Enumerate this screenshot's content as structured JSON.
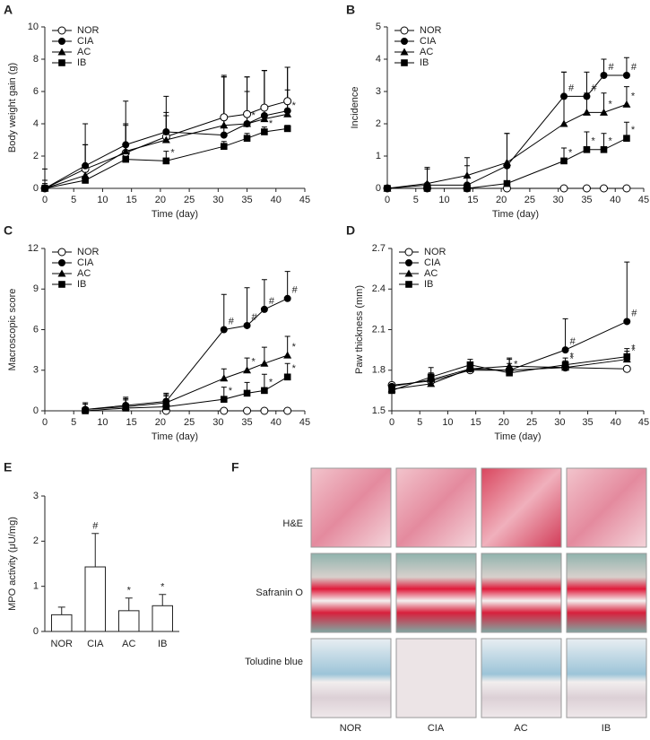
{
  "chart_data": [
    {
      "type": "line",
      "panel_label": "A",
      "xlabel": "Time (day)",
      "ylabel": "Body weight gain (g)",
      "x": [
        0,
        7,
        14,
        21,
        31,
        35,
        38,
        42
      ],
      "xlim": [
        0,
        45
      ],
      "xticks": [
        0,
        5,
        10,
        15,
        20,
        25,
        30,
        35,
        40,
        45
      ],
      "ylim": [
        0,
        10
      ],
      "yticks": [
        0,
        2,
        4,
        6,
        8,
        10
      ],
      "legend": "upper left",
      "series": [
        {
          "name": "NOR",
          "marker": "circle-open",
          "color": "#000000",
          "values": [
            0,
            1.2,
            2.2,
            3.2,
            4.4,
            4.6,
            5.0,
            5.4
          ],
          "errors": [
            1.2,
            1.5,
            1.7,
            1.5,
            2.6,
            2.3,
            2.3,
            2.1
          ],
          "point_labels": [
            null,
            null,
            null,
            null,
            null,
            null,
            null,
            null
          ]
        },
        {
          "name": "CIA",
          "marker": "circle-filled",
          "color": "#000000",
          "values": [
            0,
            1.4,
            2.7,
            3.5,
            3.3,
            4.0,
            4.5,
            4.8
          ],
          "errors": [
            0.2,
            2.6,
            2.7,
            2.2,
            3.6,
            2.9,
            2.8,
            2.7
          ],
          "point_labels": [
            null,
            null,
            null,
            null,
            null,
            null,
            null,
            null
          ]
        },
        {
          "name": "AC",
          "marker": "triangle",
          "color": "#000000",
          "values": [
            0,
            0.8,
            2.3,
            3.0,
            3.9,
            4.0,
            4.3,
            4.6
          ],
          "errors": [
            0.5,
            1.9,
            1.7,
            1.5,
            3.0,
            2.0,
            3.0,
            1.5
          ],
          "point_labels": [
            null,
            null,
            null,
            null,
            null,
            "*",
            null,
            "*"
          ]
        },
        {
          "name": "IB",
          "marker": "square",
          "color": "#000000",
          "values": [
            0,
            0.5,
            1.8,
            1.7,
            2.6,
            3.1,
            3.5,
            3.7
          ],
          "errors": [
            0.3,
            0.6,
            0.2,
            0.6,
            0.3,
            0.3,
            0.3,
            0.2
          ],
          "point_labels": [
            null,
            null,
            null,
            "*",
            null,
            null,
            "*",
            null
          ]
        }
      ]
    },
    {
      "type": "line",
      "panel_label": "B",
      "xlabel": "Time (day)",
      "ylabel": "Incidence",
      "x": [
        0,
        7,
        14,
        21,
        31,
        35,
        38,
        42
      ],
      "xlim": [
        0,
        45
      ],
      "xticks": [
        0,
        5,
        10,
        15,
        20,
        25,
        30,
        35,
        40,
        45
      ],
      "ylim": [
        0,
        5
      ],
      "yticks": [
        0,
        1,
        2,
        3,
        4,
        5
      ],
      "legend": "upper left",
      "series": [
        {
          "name": "NOR",
          "marker": "circle-open",
          "color": "#000000",
          "values": [
            0,
            0,
            0,
            0,
            0,
            0,
            0,
            0
          ],
          "errors": [
            0,
            0,
            0,
            0,
            0,
            0,
            0,
            0
          ],
          "point_labels": [
            null,
            null,
            null,
            null,
            null,
            null,
            null,
            null
          ]
        },
        {
          "name": "CIA",
          "marker": "circle-filled",
          "color": "#000000",
          "values": [
            0,
            0.1,
            0.1,
            0.7,
            2.85,
            2.85,
            3.5,
            3.5
          ],
          "errors": [
            0,
            0.5,
            0.6,
            1.0,
            0.75,
            0.75,
            0.5,
            0.55
          ],
          "point_labels": [
            null,
            null,
            null,
            null,
            "#",
            "#",
            "#",
            "#"
          ]
        },
        {
          "name": "AC",
          "marker": "triangle",
          "color": "#000000",
          "values": [
            0,
            0.15,
            0.4,
            0.8,
            2.0,
            2.35,
            2.35,
            2.6
          ],
          "errors": [
            0,
            0.5,
            0.55,
            0.9,
            1.6,
            0.6,
            0.6,
            0.55
          ],
          "point_labels": [
            null,
            null,
            null,
            null,
            null,
            null,
            "*",
            "*"
          ]
        },
        {
          "name": "IB",
          "marker": "square",
          "color": "#000000",
          "values": [
            0,
            0,
            0,
            0.15,
            0.85,
            1.2,
            1.2,
            1.55
          ],
          "errors": [
            0,
            0,
            0,
            0.5,
            0.4,
            0.55,
            0.5,
            0.5
          ],
          "point_labels": [
            null,
            null,
            null,
            null,
            "*",
            "*",
            "*",
            "*"
          ]
        }
      ]
    },
    {
      "type": "line",
      "panel_label": "C",
      "xlabel": "Time (day)",
      "ylabel": "Macroscopic score",
      "x": [
        7,
        14,
        21,
        31,
        35,
        38,
        42
      ],
      "xlim": [
        0,
        45
      ],
      "xticks": [
        0,
        5,
        10,
        15,
        20,
        25,
        30,
        35,
        40,
        45
      ],
      "ylim": [
        0,
        12
      ],
      "yticks": [
        0,
        3,
        6,
        9,
        12
      ],
      "legend": "upper left",
      "series": [
        {
          "name": "NOR",
          "marker": "circle-open",
          "color": "#000000",
          "values": [
            null,
            null,
            0,
            0,
            0,
            0,
            0
          ],
          "errors": [
            null,
            null,
            0,
            0,
            0,
            0,
            0
          ],
          "point_labels": [
            null,
            null,
            null,
            null,
            null,
            null,
            null
          ]
        },
        {
          "name": "CIA",
          "marker": "circle-filled",
          "color": "#000000",
          "values": [
            0.1,
            0.4,
            0.7,
            6.0,
            6.3,
            7.5,
            8.3
          ],
          "errors": [
            0.5,
            0.6,
            0.6,
            2.6,
            2.8,
            2.2,
            2.0
          ],
          "point_labels": [
            null,
            null,
            null,
            "#",
            "#",
            "#",
            "#"
          ]
        },
        {
          "name": "AC",
          "marker": "triangle",
          "color": "#000000",
          "values": [
            0.1,
            0.3,
            0.6,
            2.4,
            3.0,
            3.5,
            4.1
          ],
          "errors": [
            0.4,
            0.5,
            0.5,
            0.7,
            0.9,
            1.2,
            1.4
          ],
          "point_labels": [
            null,
            null,
            null,
            null,
            "*",
            null,
            "*"
          ]
        },
        {
          "name": "IB",
          "marker": "square",
          "color": "#000000",
          "values": [
            0,
            0.2,
            0.3,
            0.85,
            1.3,
            1.5,
            2.5
          ],
          "errors": [
            0.6,
            0.7,
            0.9,
            0.9,
            0.8,
            1.2,
            1.0
          ],
          "point_labels": [
            null,
            null,
            null,
            "*",
            null,
            "*",
            "*"
          ]
        }
      ]
    },
    {
      "type": "line",
      "panel_label": "D",
      "xlabel": "Time (day)",
      "ylabel": "Paw thickness (mm)",
      "x": [
        0,
        7,
        14,
        21,
        31,
        42
      ],
      "xlim": [
        0,
        45
      ],
      "xticks": [
        0,
        5,
        10,
        15,
        20,
        25,
        30,
        35,
        40,
        45
      ],
      "ylim": [
        1.5,
        2.7
      ],
      "yticks": [
        1.5,
        1.8,
        2.1,
        2.4,
        2.7
      ],
      "legend": "upper left",
      "series": [
        {
          "name": "NOR",
          "marker": "circle-open",
          "color": "#000000",
          "values": [
            1.69,
            1.72,
            1.8,
            1.8,
            1.82,
            1.81
          ],
          "errors": [
            0.02,
            0.02,
            0.02,
            0.02,
            0.02,
            0.02
          ],
          "point_labels": [
            null,
            null,
            null,
            null,
            null,
            null
          ]
        },
        {
          "name": "CIA",
          "marker": "circle-filled",
          "color": "#000000",
          "values": [
            1.68,
            1.73,
            1.81,
            1.8,
            1.95,
            2.16
          ],
          "errors": [
            0.03,
            0.05,
            0.05,
            0.05,
            0.23,
            0.44
          ],
          "point_labels": [
            null,
            null,
            null,
            null,
            "#",
            "#"
          ]
        },
        {
          "name": "AC",
          "marker": "triangle",
          "color": "#000000",
          "values": [
            1.66,
            1.7,
            1.81,
            1.83,
            1.82,
            1.88
          ],
          "errors": [
            0.03,
            0.06,
            0.04,
            0.06,
            0.05,
            0.06
          ],
          "point_labels": [
            null,
            null,
            null,
            null,
            "*",
            "*"
          ]
        },
        {
          "name": "IB",
          "marker": "square",
          "color": "#000000",
          "values": [
            1.65,
            1.75,
            1.84,
            1.78,
            1.84,
            1.9
          ],
          "errors": [
            0.04,
            0.07,
            0.04,
            0.1,
            0.05,
            0.06
          ],
          "point_labels": [
            null,
            null,
            null,
            "*",
            "*",
            "*"
          ]
        }
      ]
    },
    {
      "type": "bar",
      "panel_label": "E",
      "ylabel": "MPO activity (μU/mg)",
      "categories": [
        "NOR",
        "CIA",
        "AC",
        "IB"
      ],
      "values": [
        0.37,
        1.43,
        0.46,
        0.57
      ],
      "errors": [
        0.17,
        0.74,
        0.28,
        0.25
      ],
      "point_labels": [
        null,
        "#",
        "*",
        "*"
      ],
      "color": "#ffffff",
      "ylim": [
        0,
        3
      ],
      "yticks": [
        0,
        1,
        2,
        3
      ]
    }
  ],
  "image_panel": {
    "label": "F",
    "rows": [
      "H&E",
      "Safranin O",
      "Toludine blue"
    ],
    "columns": [
      "NOR",
      "CIA",
      "AC",
      "IB"
    ]
  }
}
